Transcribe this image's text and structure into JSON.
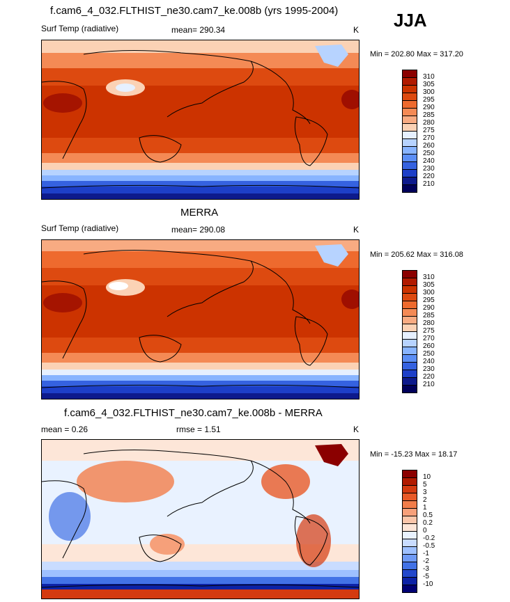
{
  "season": "JJA",
  "panels": [
    {
      "title": "f.cam6_4_032.FLTHIST_ne30.cam7_ke.008b (yrs 1995-2004)",
      "left_label": "Surf Temp (radiative)",
      "center_label": "mean= 290.34",
      "units": "K",
      "minmax": "Min = 202.80 Max = 317.20",
      "levels": [
        "310",
        "305",
        "300",
        "295",
        "290",
        "285",
        "280",
        "275",
        "270",
        "260",
        "250",
        "240",
        "230",
        "220",
        "210"
      ],
      "colors": [
        "#8b0000",
        "#b11a00",
        "#cc3300",
        "#dd4a10",
        "#ee6a2e",
        "#f48a55",
        "#f8ab82",
        "#fbd2b5",
        "#e6f0ff",
        "#b7d3ff",
        "#88b4ff",
        "#5b8ef5",
        "#3562e0",
        "#1d3fc8",
        "#0d1a8c",
        "#00005a"
      ]
    },
    {
      "title": "MERRA",
      "left_label": "Surf Temp (radiative)",
      "center_label": "mean= 290.08",
      "units": "K",
      "minmax": "Min = 205.62 Max = 316.08",
      "levels": [
        "310",
        "305",
        "300",
        "295",
        "290",
        "285",
        "280",
        "275",
        "270",
        "260",
        "250",
        "240",
        "230",
        "220",
        "210"
      ],
      "colors": [
        "#8b0000",
        "#b11a00",
        "#cc3300",
        "#dd4a10",
        "#ee6a2e",
        "#f48a55",
        "#f8ab82",
        "#fbd2b5",
        "#e6f0ff",
        "#b7d3ff",
        "#88b4ff",
        "#5b8ef5",
        "#3562e0",
        "#1d3fc8",
        "#0d1a8c",
        "#00005a"
      ]
    },
    {
      "title": "f.cam6_4_032.FLTHIST_ne30.cam7_ke.008b - MERRA",
      "left_label": "mean =   0.26",
      "center_label": "rmse =   1.51",
      "units": "K",
      "minmax": "Min = -15.23 Max =  18.17",
      "levels": [
        "10",
        "5",
        "3",
        "2",
        "1",
        "0.5",
        "0.2",
        "0",
        "-0.2",
        "-0.5",
        "-1",
        "-2",
        "-3",
        "-5",
        "-10"
      ],
      "colors": [
        "#8b0000",
        "#b11a00",
        "#d43a10",
        "#e85a28",
        "#f27d4a",
        "#f6a07a",
        "#fac6aa",
        "#fde6d8",
        "#e9f2ff",
        "#c9dcff",
        "#9ec0ff",
        "#6f9af5",
        "#4272e6",
        "#2248cc",
        "#0c22a6",
        "#000073"
      ]
    }
  ]
}
